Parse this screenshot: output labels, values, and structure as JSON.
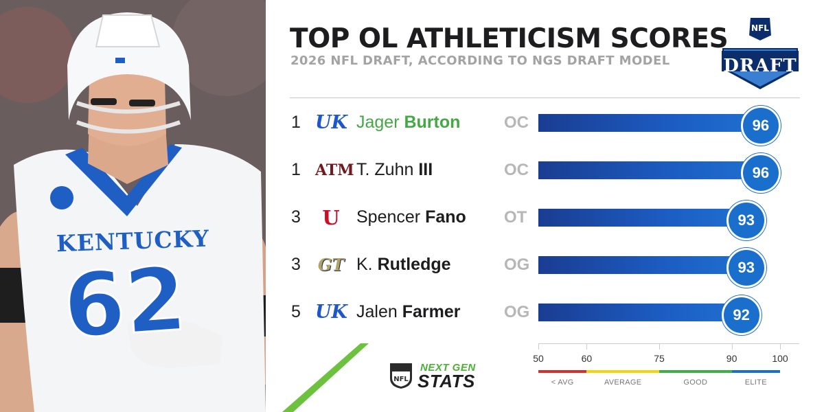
{
  "header": {
    "title": "TOP OL ATHLETICISM SCORES",
    "subtitle": "2026 NFL DRAFT, ACCORDING TO NGS DRAFT MODEL",
    "logo_text": "DRAFT",
    "logo_badge": "NFL"
  },
  "photo": {
    "jersey_word": "KENTUCKY",
    "jersey_number": "62"
  },
  "branding": {
    "ngs_top": "NEXT GEN",
    "ngs_bottom": "STATS"
  },
  "colors": {
    "bar": "#1c5cc2",
    "badge": "#1a6fcd",
    "highlight_name": "#44a845",
    "band_below_avg": "#d32f2f",
    "band_average": "#f2d40f",
    "band_good": "#3fae4a",
    "band_elite": "#1a6fcd"
  },
  "chart_data": {
    "type": "bar",
    "title": "TOP OL ATHLETICISM SCORES",
    "subtitle": "2026 NFL DRAFT, ACCORDING TO NGS DRAFT MODEL",
    "orientation": "horizontal",
    "xlim": [
      50,
      100
    ],
    "xticks": [
      "50",
      "60",
      "75",
      "90",
      "100"
    ],
    "bands": [
      {
        "label": "< AVG",
        "from": 50,
        "to": 60
      },
      {
        "label": "AVERAGE",
        "from": 60,
        "to": 75
      },
      {
        "label": "GOOD",
        "from": 75,
        "to": 90
      },
      {
        "label": "ELITE",
        "from": 90,
        "to": 100
      }
    ],
    "rows": [
      {
        "rank": "1",
        "first": "Jager",
        "last": "Burton",
        "position": "OC",
        "school_logo": "uk-logo",
        "value": 96,
        "highlight": true
      },
      {
        "rank": "1",
        "first": "T. Zuhn",
        "last": "III",
        "position": "OC",
        "school_logo": "texas-am-logo",
        "value": 96,
        "highlight": false
      },
      {
        "rank": "3",
        "first": "Spencer",
        "last": "Fano",
        "position": "OT",
        "school_logo": "utah-logo",
        "value": 93,
        "highlight": false
      },
      {
        "rank": "3",
        "first": "K.",
        "last": "Rutledge",
        "position": "OG",
        "school_logo": "georgia-tech-logo",
        "value": 93,
        "highlight": false
      },
      {
        "rank": "5",
        "first": "Jalen",
        "last": "Farmer",
        "position": "OG",
        "school_logo": "uk-logo",
        "value": 92,
        "highlight": false
      }
    ]
  }
}
